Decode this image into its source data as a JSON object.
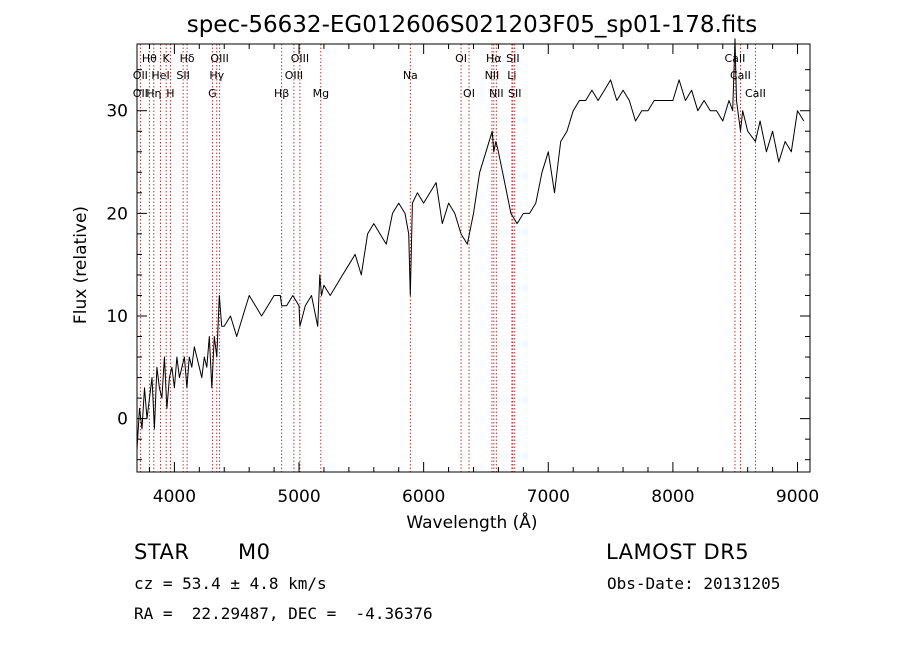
{
  "chart_data": {
    "type": "line",
    "title": "spec-56632-EG012606S021203F05_sp01-178.fits",
    "xlabel": "Wavelength (Å)",
    "ylabel": "Flux (relative)",
    "xlim": [
      3700,
      9100
    ],
    "ylim": [
      -5.2,
      36.5
    ],
    "xticks": [
      4000,
      5000,
      6000,
      7000,
      8000,
      9000
    ],
    "yticks": [
      0,
      10,
      20,
      30
    ],
    "grid": false,
    "series": [
      {
        "x": [
          3700,
          3720,
          3740,
          3760,
          3780,
          3800,
          3820,
          3840,
          3860,
          3880,
          3900,
          3920,
          3940,
          3960,
          3980,
          4000,
          4020,
          4040,
          4060,
          4080,
          4100,
          4120,
          4140,
          4160,
          4180,
          4200,
          4220,
          4240,
          4260,
          4280,
          4300,
          4320,
          4340,
          4360,
          4380,
          4400,
          4450,
          4500,
          4550,
          4600,
          4650,
          4700,
          4750,
          4800,
          4850,
          4861,
          4900,
          4950,
          5000,
          5007,
          5050,
          5100,
          5150,
          5167,
          5180,
          5200,
          5250,
          5300,
          5350,
          5400,
          5450,
          5500,
          5550,
          5600,
          5650,
          5700,
          5750,
          5800,
          5850,
          5880,
          5893,
          5910,
          5950,
          6000,
          6050,
          6100,
          6150,
          6200,
          6250,
          6300,
          6350,
          6400,
          6450,
          6500,
          6550,
          6563,
          6580,
          6600,
          6650,
          6700,
          6750,
          6800,
          6850,
          6900,
          6950,
          7000,
          7050,
          7080,
          7100,
          7150,
          7200,
          7250,
          7300,
          7350,
          7400,
          7450,
          7500,
          7550,
          7600,
          7650,
          7700,
          7750,
          7800,
          7850,
          7900,
          7950,
          8000,
          8050,
          8100,
          8150,
          8200,
          8250,
          8300,
          8350,
          8400,
          8450,
          8480,
          8498,
          8510,
          8542,
          8560,
          8600,
          8662,
          8700,
          8750,
          8800,
          8850,
          8900,
          8950,
          9000,
          9050
        ],
        "y": [
          -3,
          1,
          -1,
          3,
          0,
          2,
          4,
          -1,
          5,
          3,
          2,
          6,
          1,
          4,
          5,
          3,
          6,
          4,
          5,
          6,
          3,
          6,
          5,
          7,
          6,
          5,
          4,
          6,
          5,
          8,
          3,
          8,
          6,
          12,
          9,
          9,
          10,
          8,
          10,
          12,
          11,
          10,
          11,
          12,
          12,
          11,
          11,
          12,
          11,
          9,
          11,
          12,
          9,
          14,
          12,
          13,
          12,
          13,
          14,
          15,
          16,
          14,
          18,
          19,
          18,
          17,
          20,
          21,
          20,
          18,
          12,
          21,
          22,
          21,
          22,
          23,
          19,
          21,
          20,
          18,
          17,
          20,
          24,
          26,
          28,
          26,
          27,
          26,
          23,
          20,
          19,
          20,
          20,
          21,
          24,
          26,
          22,
          25,
          27,
          28,
          30,
          31,
          31,
          32,
          31,
          32,
          33,
          31,
          32,
          31,
          29,
          30,
          30,
          31,
          31,
          31,
          31,
          33,
          31,
          32,
          30,
          31,
          30,
          30,
          29,
          31,
          30,
          37,
          31,
          28,
          30,
          28,
          27,
          29,
          26,
          28,
          25,
          27,
          26,
          30,
          29
        ]
      }
    ],
    "annotations": [
      {
        "label": "Hθ",
        "x": 3799,
        "row": 0
      },
      {
        "label": "K",
        "x": 3934,
        "row": 0
      },
      {
        "label": "Hδ",
        "x": 4102,
        "row": 0
      },
      {
        "label": "OIII",
        "x": 4363,
        "row": 0
      },
      {
        "label": "OIII",
        "x": 5007,
        "row": 0
      },
      {
        "label": "OI",
        "x": 6300,
        "row": 0
      },
      {
        "label": "Hα",
        "x": 6563,
        "row": 0
      },
      {
        "label": "SII",
        "x": 6716,
        "row": 0
      },
      {
        "label": "CaII",
        "x": 8498,
        "row": 0
      },
      {
        "label": "OII",
        "x": 3727,
        "row": 1
      },
      {
        "label": "HeI",
        "x": 3889,
        "row": 1
      },
      {
        "label": "SII",
        "x": 4070,
        "row": 1
      },
      {
        "label": "Hγ",
        "x": 4340,
        "row": 1
      },
      {
        "label": "OIII",
        "x": 4959,
        "row": 1
      },
      {
        "label": "Na",
        "x": 5893,
        "row": 1
      },
      {
        "label": "NII",
        "x": 6548,
        "row": 1
      },
      {
        "label": "Li",
        "x": 6708,
        "row": 1
      },
      {
        "label": "CaII",
        "x": 8542,
        "row": 1
      },
      {
        "label": "OII",
        "x": 3727,
        "row": 2
      },
      {
        "label": "Hη",
        "x": 3835,
        "row": 2
      },
      {
        "label": "H",
        "x": 3968,
        "row": 2
      },
      {
        "label": "G",
        "x": 4305,
        "row": 2
      },
      {
        "label": "Hβ",
        "x": 4861,
        "row": 2
      },
      {
        "label": "Mg",
        "x": 5175,
        "row": 2
      },
      {
        "label": "OI",
        "x": 6364,
        "row": 2
      },
      {
        "label": "NII",
        "x": 6583,
        "row": 2
      },
      {
        "label": "SII",
        "x": 6731,
        "row": 2
      },
      {
        "label": "CaII",
        "x": 8662,
        "row": 2
      }
    ],
    "line_marks": [
      3727,
      3799,
      3835,
      3889,
      3934,
      3968,
      4070,
      4102,
      4305,
      4340,
      4363,
      4861,
      4959,
      5007,
      5175,
      5893,
      6300,
      6364,
      6548,
      6563,
      6583,
      6708,
      6716,
      6731,
      8498,
      8542,
      8662
    ],
    "colors": {
      "spectrum": "#000000",
      "line_marks": "#b22222",
      "axes": "#000000"
    }
  },
  "info": {
    "object": "STAR",
    "subclass": "M0",
    "survey": "LAMOST DR5",
    "cz": "cz = 53.4 ± 4.8 km/s",
    "obs_date": "Obs-Date: 20131205",
    "coords": "RA =  22.29487, DEC =  -4.36376"
  }
}
